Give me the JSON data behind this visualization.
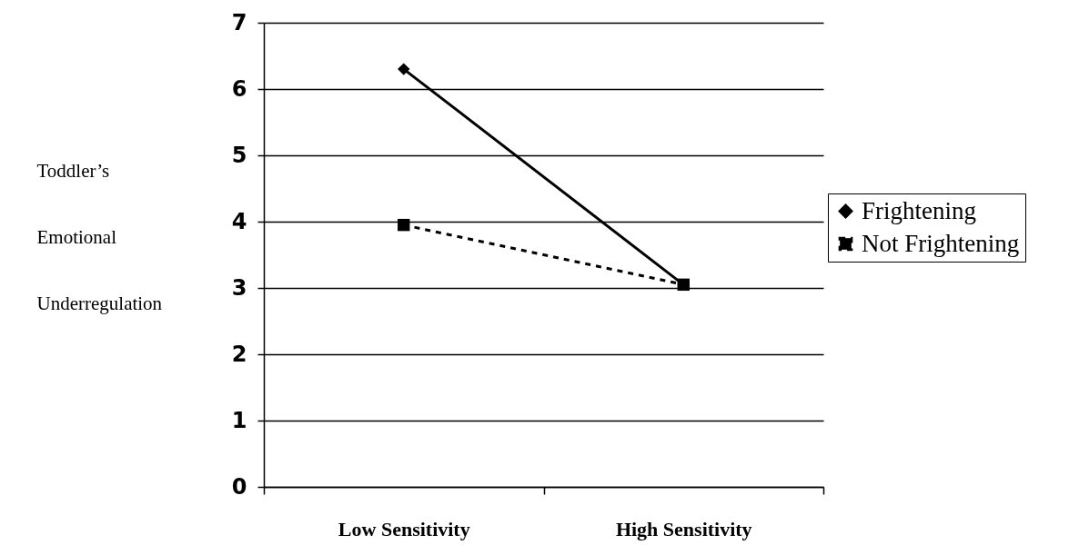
{
  "chart_data": {
    "type": "line",
    "ylabel": "Toddler’s Emotional Underregulation",
    "categories": [
      "Low Sensitivity",
      "High Sensitivity"
    ],
    "series": [
      {
        "name": "Frightening",
        "color": "#000000",
        "values": [
          6.3,
          3.05
        ],
        "marker": "diamond",
        "line_style": "solid"
      },
      {
        "name": "Not Frightening",
        "color": "#000000",
        "values": [
          3.95,
          3.05
        ],
        "marker": "square",
        "line_style": "dashed"
      }
    ],
    "ylim": [
      0,
      7
    ],
    "yticks": [
      0,
      1,
      2,
      3,
      4,
      5,
      6,
      7
    ],
    "grid": "y",
    "legend": "right"
  }
}
